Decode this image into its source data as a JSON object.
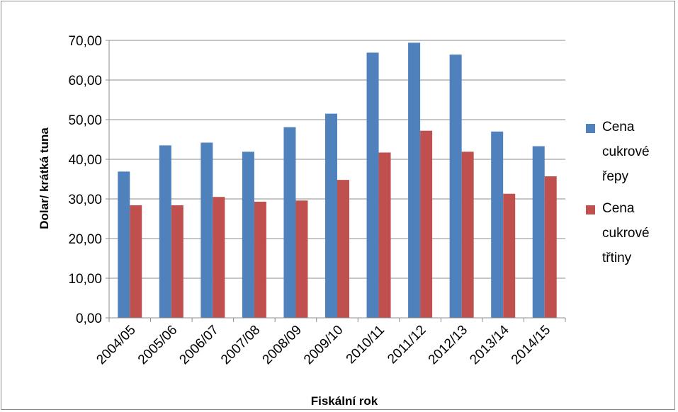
{
  "chart_data": {
    "type": "bar",
    "title": "",
    "xlabel": "Fiskální rok",
    "ylabel": "Dolar/ krátká tuna",
    "categories": [
      "2004/05",
      "2005/06",
      "2006/07",
      "2007/08",
      "2008/09",
      "2009/10",
      "2010/11",
      "2011/12",
      "2012/13",
      "2013/14",
      "2014/15"
    ],
    "ylim": [
      0,
      70
    ],
    "yticks": [
      0,
      10,
      20,
      30,
      40,
      50,
      60,
      70
    ],
    "ytick_labels": [
      "0,00",
      "10,00",
      "20,00",
      "30,00",
      "40,00",
      "50,00",
      "60,00",
      "70,00"
    ],
    "grid": true,
    "legend_position": "right",
    "series": [
      {
        "name": "Cena cukrové řepy",
        "name_lines": [
          "Cena",
          "cukrové",
          "řepy"
        ],
        "color": "#4f81bd",
        "values": [
          36.9,
          43.5,
          44.2,
          41.9,
          48.1,
          51.5,
          66.9,
          69.4,
          66.4,
          47.0,
          43.3
        ]
      },
      {
        "name": "Cena cukrové třtiny",
        "name_lines": [
          "Cena",
          "cukrové",
          "třtiny"
        ],
        "color": "#c0504d",
        "values": [
          28.4,
          28.4,
          30.5,
          29.3,
          29.6,
          34.8,
          41.7,
          47.2,
          41.9,
          31.3,
          35.7
        ]
      }
    ]
  }
}
